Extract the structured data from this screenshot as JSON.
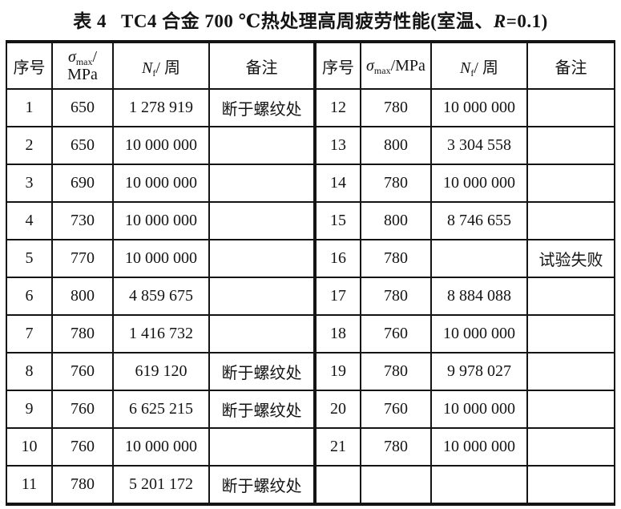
{
  "title": {
    "label": "表 4",
    "main": "TC4 合金 700 ℃热处理高周疲劳性能(室温、",
    "r_symbol": "R",
    "tail": "=0.1)"
  },
  "table": {
    "left": {
      "header": {
        "no": "序号",
        "sigma_symbol": "σ",
        "sigma_sub": "max",
        "sigma_line1_suffix": "/",
        "sigma_line2": "MPa",
        "nf_symbol": "N",
        "nf_sub": "f",
        "nf_suffix": "/ 周",
        "note": "备注"
      },
      "rows": [
        {
          "no": "1",
          "sigma": "650",
          "nf": "1 278 919",
          "note": "断于螺纹处"
        },
        {
          "no": "2",
          "sigma": "650",
          "nf": "10 000 000",
          "note": ""
        },
        {
          "no": "3",
          "sigma": "690",
          "nf": "10 000 000",
          "note": ""
        },
        {
          "no": "4",
          "sigma": "730",
          "nf": "10 000 000",
          "note": ""
        },
        {
          "no": "5",
          "sigma": "770",
          "nf": "10 000 000",
          "note": ""
        },
        {
          "no": "6",
          "sigma": "800",
          "nf": "4 859 675",
          "note": ""
        },
        {
          "no": "7",
          "sigma": "780",
          "nf": "1 416 732",
          "note": ""
        },
        {
          "no": "8",
          "sigma": "760",
          "nf": "619 120",
          "note": "断于螺纹处"
        },
        {
          "no": "9",
          "sigma": "760",
          "nf": "6 625 215",
          "note": "断于螺纹处"
        },
        {
          "no": "10",
          "sigma": "760",
          "nf": "10 000 000",
          "note": ""
        },
        {
          "no": "11",
          "sigma": "780",
          "nf": "5 201 172",
          "note": "断于螺纹处"
        }
      ]
    },
    "right": {
      "header": {
        "no": "序号",
        "sigma_symbol": "σ",
        "sigma_sub": "max",
        "sigma_suffix": "/MPa",
        "nf_symbol": "N",
        "nf_sub": "f",
        "nf_suffix": "/ 周",
        "note": "备注"
      },
      "rows": [
        {
          "no": "12",
          "sigma": "780",
          "nf": "10 000 000",
          "note": ""
        },
        {
          "no": "13",
          "sigma": "800",
          "nf": "3 304 558",
          "note": ""
        },
        {
          "no": "14",
          "sigma": "780",
          "nf": "10 000 000",
          "note": ""
        },
        {
          "no": "15",
          "sigma": "800",
          "nf": "8 746 655",
          "note": ""
        },
        {
          "no": "16",
          "sigma": "780",
          "nf": "",
          "note": "试验失败"
        },
        {
          "no": "17",
          "sigma": "780",
          "nf": "8 884 088",
          "note": ""
        },
        {
          "no": "18",
          "sigma": "760",
          "nf": "10 000 000",
          "note": ""
        },
        {
          "no": "19",
          "sigma": "780",
          "nf": "9 978 027",
          "note": ""
        },
        {
          "no": "20",
          "sigma": "760",
          "nf": "10 000 000",
          "note": ""
        },
        {
          "no": "21",
          "sigma": "780",
          "nf": "10 000 000",
          "note": ""
        },
        {
          "no": "",
          "sigma": "",
          "nf": "",
          "note": ""
        }
      ]
    }
  }
}
